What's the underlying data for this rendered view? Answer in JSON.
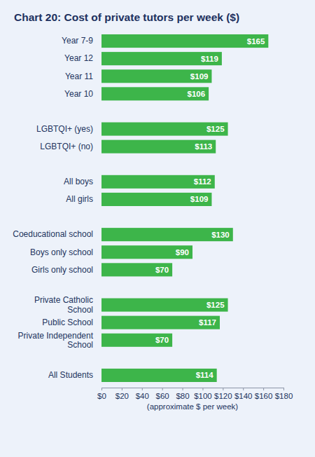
{
  "chart_data": {
    "type": "bar",
    "title": "Chart 20: Cost of private tutors per week ($)",
    "orientation": "horizontal",
    "x_label": "(approximate $ per week)",
    "categories": [
      "Year 7-9",
      "Year 12",
      "Year 11",
      "Year 10",
      null,
      "LGBTQI+ (yes)",
      "LGBTQI+ (no)",
      null,
      "All boys",
      "All girls",
      null,
      "Coeducational school",
      "Boys only school",
      "Girls only school",
      null,
      "Private Catholic School",
      "Public School",
      "Private Independent School",
      null,
      "All Students"
    ],
    "values": [
      165,
      119,
      109,
      106,
      null,
      125,
      113,
      null,
      112,
      109,
      null,
      130,
      90,
      70,
      null,
      125,
      117,
      70,
      null,
      114
    ],
    "value_labels": [
      "$165",
      "$119",
      "$109",
      "$106",
      null,
      "$125",
      "$113",
      null,
      "$112",
      "$109",
      null,
      "$130",
      "$90",
      "$70",
      null,
      "$125",
      "$117",
      "$70",
      null,
      "$114"
    ],
    "data_labels": true,
    "color": "#3db54a",
    "xlim": [
      0,
      180
    ],
    "xticks": [
      {
        "value": 0,
        "label": "$0"
      },
      {
        "value": 20,
        "label": "$20"
      },
      {
        "value": 40,
        "label": "$40"
      },
      {
        "value": 60,
        "label": "$60"
      },
      {
        "value": 80,
        "label": "$80"
      },
      {
        "value": 100,
        "label": "$100"
      },
      {
        "value": 120,
        "label": "$120"
      },
      {
        "value": 140,
        "label": "$140"
      },
      {
        "value": 160,
        "label": "$160"
      },
      {
        "value": 180,
        "label": "$180"
      }
    ],
    "grid": false
  }
}
